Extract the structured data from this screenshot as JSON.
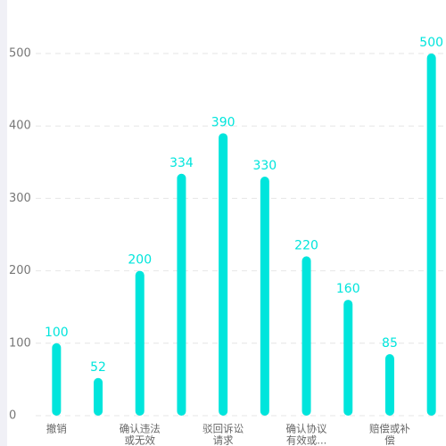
{
  "chart_data": {
    "type": "bar",
    "categories": [
      [
        "撤销"
      ],
      null,
      [
        "确认违法",
        "或无效"
      ],
      null,
      [
        "驳回诉讼",
        "请求"
      ],
      null,
      [
        "确认协议",
        "有效或..."
      ],
      null,
      [
        "赔偿或补",
        "偿"
      ],
      null
    ],
    "values": [
      100,
      52,
      200,
      334,
      390,
      330,
      220,
      160,
      85,
      500
    ],
    "color": "#00e5dc",
    "ylim": [
      0,
      500
    ],
    "yticks": [
      0,
      100,
      200,
      300,
      400,
      500
    ],
    "grid": true
  }
}
